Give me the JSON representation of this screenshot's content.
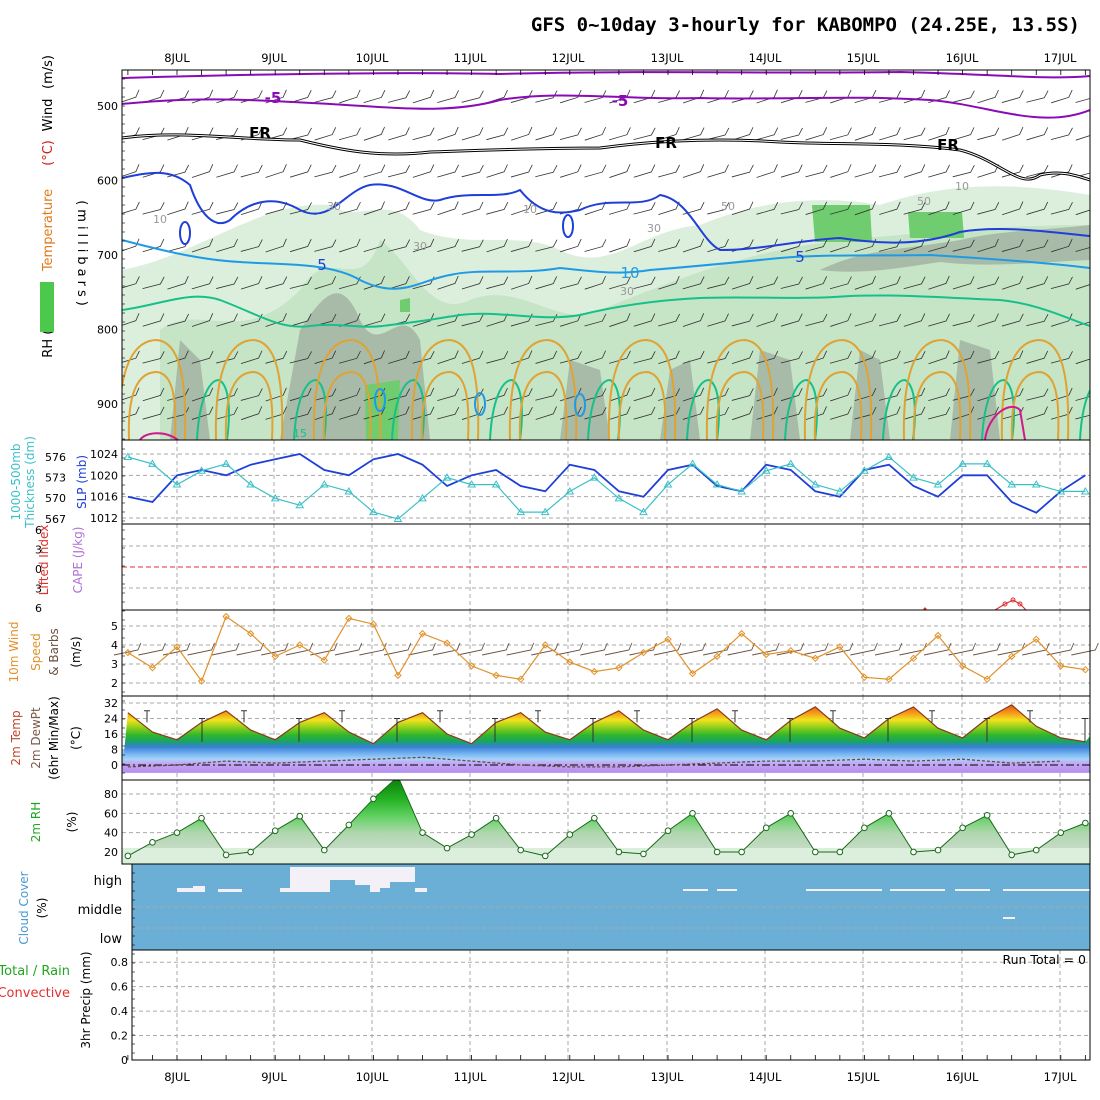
{
  "title": "GFS 0~10day 3-hourly for KABOMPO (24.25E, 13.5S)",
  "dates": [
    "8JUL",
    "9JUL",
    "10JUL",
    "11JUL",
    "12JUL",
    "13JUL",
    "14JUL",
    "15JUL",
    "16JUL",
    "17JUL"
  ],
  "colors": {
    "purple": "#8a0bb6",
    "freezing": "#000000",
    "blue5": "#1f3fd8",
    "cyan10": "#1f9be6",
    "green15": "#16c08a",
    "orange": "#e0a232",
    "magenta": "#d0188a",
    "rh_light": "#dcefdc",
    "rh_mid": "#a6d7a6",
    "rh_dark": "#6fcc6f",
    "rh_grey": "#9eae9e",
    "slp": "#1f3fd8",
    "thickness": "#3cc0c8",
    "cape": "#b070d8",
    "li": "#e03030",
    "wind10": "#e0922a",
    "barb": "#6a5040",
    "cloud_bg": "#6baed6",
    "cloud_gap": "#f4f0f8",
    "precip_total": "#1fa61f",
    "precip_conv": "#e03030"
  },
  "panels": {
    "upper": {
      "ylabel_parts": [
        "RH (%)",
        "Temperature",
        "(°C)",
        "Wind",
        "(m/s)"
      ],
      "ylabel2": "(millibars)",
      "yticks": [
        "500",
        "600",
        "700",
        "800",
        "900"
      ],
      "contour_labels": [
        "-5",
        "-5",
        "FR",
        "FR",
        "FR",
        "5",
        "5",
        "10",
        "10",
        "10",
        "10",
        "30",
        "30",
        "30",
        "50",
        "50",
        "30",
        "15"
      ]
    },
    "slp": {
      "ylabel_a": "1000-500mb",
      "ylabel_b": "Thickness (dm)",
      "ylabel_c": "SLP (mb)",
      "yticks_thick": [
        "576",
        "573",
        "570",
        "567"
      ],
      "yticks_slp": [
        "1024",
        "1020",
        "1016",
        "1012"
      ]
    },
    "cape": {
      "ylabel_a": "Lifted Index",
      "ylabel_b": "CAPE (J/kg)",
      "yticks": [
        "6",
        "3",
        "0",
        "3",
        "6"
      ]
    },
    "wind": {
      "ylabel_a": "10m Wind",
      "ylabel_b": "Speed",
      "ylabel_c": "& Barbs",
      "ylabel_d": "(m/s)",
      "yticks": [
        "5",
        "4",
        "3",
        "2"
      ]
    },
    "temp": {
      "ylabel_a": "2m Temp",
      "ylabel_b": "2m DewPt",
      "ylabel_c": "(6hr Min/Max)",
      "ylabel_d": "(°C)",
      "yticks": [
        "32",
        "24",
        "16",
        "8",
        "0"
      ]
    },
    "rh": {
      "ylabel_a": "2m RH",
      "ylabel_b": "(%)",
      "yticks": [
        "80",
        "60",
        "40",
        "20"
      ]
    },
    "cloud": {
      "ylabel_a": "Cloud Cover",
      "ylabel_b": "(%)",
      "levels": [
        "high",
        "middle",
        "low"
      ]
    },
    "precip": {
      "ylabel_a": "Total / Rain",
      "ylabel_b": "Convective",
      "ylabel_c": "3hr Precip (mm)",
      "yticks": [
        "0.8",
        "0.6",
        "0.4",
        "0.2",
        "0"
      ],
      "run_total": "Run Total = 0"
    }
  },
  "chart_data": [
    {
      "type": "line",
      "name": "SLP",
      "units": "mb",
      "x": [
        "7/7 12Z",
        "7/7 18Z",
        "7/8 00Z",
        "7/8 06Z",
        "7/8 12Z",
        "7/8 18Z",
        "7/9 00Z",
        "7/9 06Z",
        "7/9 12Z",
        "7/9 18Z",
        "7/10 00Z",
        "7/10 06Z",
        "7/10 12Z",
        "7/10 18Z",
        "7/11 00Z",
        "7/11 06Z",
        "7/11 12Z",
        "7/11 18Z",
        "7/12 00Z",
        "7/12 06Z",
        "7/12 12Z",
        "7/12 18Z",
        "7/13 00Z",
        "7/13 06Z",
        "7/13 12Z",
        "7/13 18Z",
        "7/14 00Z",
        "7/14 06Z",
        "7/14 12Z",
        "7/14 18Z",
        "7/15 00Z",
        "7/15 06Z",
        "7/15 12Z",
        "7/15 18Z",
        "7/16 00Z",
        "7/16 06Z",
        "7/16 12Z",
        "7/16 18Z",
        "7/17 00Z",
        "7/17 06Z"
      ],
      "values": [
        1016,
        1015,
        1020,
        1021,
        1020,
        1022,
        1023,
        1024,
        1021,
        1020,
        1023,
        1024,
        1022,
        1018,
        1020,
        1021,
        1018,
        1017,
        1022,
        1021,
        1017,
        1016,
        1021,
        1022,
        1018,
        1017,
        1022,
        1021,
        1017,
        1016,
        1021,
        1022,
        1018,
        1016,
        1020,
        1020,
        1015,
        1013,
        1017,
        1020
      ]
    },
    {
      "type": "line",
      "name": "1000-500mb Thickness",
      "units": "dm",
      "x": [
        "7/7 12Z",
        "7/7 18Z",
        "7/8 00Z",
        "7/8 06Z",
        "7/8 12Z",
        "7/8 18Z",
        "7/9 00Z",
        "7/9 06Z",
        "7/9 12Z",
        "7/9 18Z",
        "7/10 00Z",
        "7/10 06Z",
        "7/10 12Z",
        "7/10 18Z",
        "7/11 00Z",
        "7/11 06Z",
        "7/11 12Z",
        "7/11 18Z",
        "7/12 00Z",
        "7/12 06Z",
        "7/12 12Z",
        "7/12 18Z",
        "7/13 00Z",
        "7/13 06Z",
        "7/13 12Z",
        "7/13 18Z",
        "7/14 00Z",
        "7/14 06Z",
        "7/14 12Z",
        "7/14 18Z",
        "7/15 00Z",
        "7/15 06Z",
        "7/15 12Z",
        "7/15 18Z",
        "7/16 00Z",
        "7/16 06Z",
        "7/16 12Z",
        "7/16 18Z",
        "7/17 00Z",
        "7/17 06Z"
      ],
      "values": [
        576,
        575,
        572,
        574,
        575,
        572,
        570,
        569,
        572,
        571,
        568,
        567,
        570,
        573,
        572,
        572,
        568,
        568,
        571,
        573,
        570,
        568,
        572,
        575,
        572,
        571,
        574,
        575,
        572,
        571,
        574,
        576,
        573,
        572,
        575,
        575,
        572,
        572,
        571,
        571
      ]
    },
    {
      "type": "line",
      "name": "10m Wind Speed",
      "units": "m/s",
      "x": [
        "7/7 12Z",
        "7/7 18Z",
        "7/8 00Z",
        "7/8 06Z",
        "7/8 12Z",
        "7/8 18Z",
        "7/9 00Z",
        "7/9 06Z",
        "7/9 12Z",
        "7/9 18Z",
        "7/10 00Z",
        "7/10 06Z",
        "7/10 12Z",
        "7/10 18Z",
        "7/11 00Z",
        "7/11 06Z",
        "7/11 12Z",
        "7/11 18Z",
        "7/12 00Z",
        "7/12 06Z",
        "7/12 12Z",
        "7/12 18Z",
        "7/13 00Z",
        "7/13 06Z",
        "7/13 12Z",
        "7/13 18Z",
        "7/14 00Z",
        "7/14 06Z",
        "7/14 12Z",
        "7/14 18Z",
        "7/15 00Z",
        "7/15 06Z",
        "7/15 12Z",
        "7/15 18Z",
        "7/16 00Z",
        "7/16 06Z",
        "7/16 12Z",
        "7/16 18Z",
        "7/17 00Z",
        "7/17 06Z"
      ],
      "values": [
        3.6,
        2.8,
        3.9,
        2.1,
        5.5,
        4.6,
        3.4,
        4.0,
        3.2,
        5.4,
        5.1,
        2.4,
        4.6,
        4.1,
        2.9,
        2.4,
        2.2,
        4.0,
        3.1,
        2.6,
        2.8,
        3.6,
        4.3,
        2.5,
        3.4,
        4.6,
        3.5,
        3.7,
        3.3,
        3.9,
        2.3,
        2.2,
        3.3,
        4.5,
        2.9,
        2.2,
        3.4,
        4.3,
        2.9,
        2.7
      ]
    },
    {
      "type": "area",
      "name": "2m Temp",
      "units": "°C",
      "x": [
        "7/7 12Z",
        "7/7 18Z",
        "7/8 00Z",
        "7/8 06Z",
        "7/8 12Z",
        "7/8 18Z",
        "7/9 00Z",
        "7/9 06Z",
        "7/9 12Z",
        "7/9 18Z",
        "7/10 00Z",
        "7/10 06Z",
        "7/10 12Z",
        "7/10 18Z",
        "7/11 00Z",
        "7/11 06Z",
        "7/11 12Z",
        "7/11 18Z",
        "7/12 00Z",
        "7/12 06Z",
        "7/12 12Z",
        "7/12 18Z",
        "7/13 00Z",
        "7/13 06Z",
        "7/13 12Z",
        "7/13 18Z",
        "7/14 00Z",
        "7/14 06Z",
        "7/14 12Z",
        "7/14 18Z",
        "7/15 00Z",
        "7/15 06Z",
        "7/15 12Z",
        "7/15 18Z",
        "7/16 00Z",
        "7/16 06Z",
        "7/16 12Z",
        "7/16 18Z",
        "7/17 00Z",
        "7/17 06Z"
      ],
      "values": [
        27,
        17,
        13,
        22,
        28,
        18,
        13,
        22,
        27,
        17,
        11,
        22,
        27,
        16,
        11,
        22,
        27,
        17,
        13,
        22,
        28,
        18,
        13,
        22,
        29,
        18,
        13,
        23,
        30,
        19,
        14,
        24,
        30,
        19,
        14,
        24,
        31,
        20,
        14,
        12
      ]
    },
    {
      "type": "line",
      "name": "2m DewPt",
      "units": "°C",
      "x": [
        "7/7 12Z",
        "7/8 00Z",
        "7/8 12Z",
        "7/9 00Z",
        "7/9 12Z",
        "7/10 00Z",
        "7/10 12Z",
        "7/11 00Z",
        "7/11 12Z",
        "7/12 00Z",
        "7/12 12Z",
        "7/13 00Z",
        "7/13 12Z",
        "7/14 00Z",
        "7/14 12Z",
        "7/15 00Z",
        "7/15 12Z",
        "7/16 00Z",
        "7/16 12Z",
        "7/17 00Z"
      ],
      "values": [
        -1,
        0,
        2,
        1,
        2,
        3,
        4,
        2,
        0,
        -1,
        -1,
        0,
        1,
        2,
        2,
        3,
        2,
        3,
        1,
        2
      ]
    },
    {
      "type": "area",
      "name": "2m RH",
      "units": "%",
      "x": [
        "7/7 12Z",
        "7/7 18Z",
        "7/8 00Z",
        "7/8 06Z",
        "7/8 12Z",
        "7/8 18Z",
        "7/9 00Z",
        "7/9 06Z",
        "7/9 12Z",
        "7/9 18Z",
        "7/10 00Z",
        "7/10 06Z",
        "7/10 12Z",
        "7/10 18Z",
        "7/11 00Z",
        "7/11 06Z",
        "7/11 12Z",
        "7/11 18Z",
        "7/12 00Z",
        "7/12 06Z",
        "7/12 12Z",
        "7/12 18Z",
        "7/13 00Z",
        "7/13 06Z",
        "7/13 12Z",
        "7/13 18Z",
        "7/14 00Z",
        "7/14 06Z",
        "7/14 12Z",
        "7/14 18Z",
        "7/15 00Z",
        "7/15 06Z",
        "7/15 12Z",
        "7/15 18Z",
        "7/16 00Z",
        "7/16 06Z",
        "7/16 12Z",
        "7/16 18Z",
        "7/17 00Z",
        "7/17 06Z"
      ],
      "values": [
        16,
        30,
        40,
        55,
        17,
        20,
        42,
        57,
        22,
        48,
        75,
        98,
        40,
        24,
        38,
        55,
        22,
        16,
        38,
        55,
        20,
        18,
        42,
        60,
        20,
        20,
        45,
        60,
        20,
        20,
        45,
        60,
        20,
        22,
        45,
        58,
        17,
        22,
        40,
        50
      ]
    },
    {
      "type": "bar",
      "name": "3hr Precip",
      "units": "mm",
      "categories": [
        "8JUL",
        "9JUL",
        "10JUL",
        "11JUL",
        "12JUL",
        "13JUL",
        "14JUL",
        "15JUL",
        "16JUL",
        "17JUL"
      ],
      "values": [
        0,
        0,
        0,
        0,
        0,
        0,
        0,
        0,
        0,
        0
      ],
      "ylim": [
        0,
        0.9
      ]
    }
  ]
}
